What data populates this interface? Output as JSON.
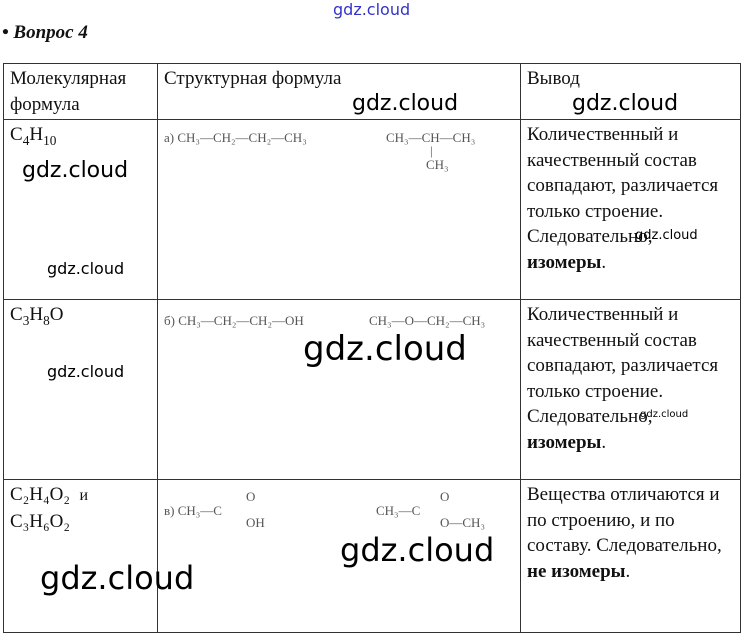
{
  "question": "• Вопрос 4",
  "headers": [
    "Молекулярная формула",
    "Структурная формула",
    "Вывод"
  ],
  "rows": [
    {
      "mol": [
        [
          "C",
          "4"
        ],
        [
          "H",
          "10"
        ]
      ],
      "label": "а)",
      "f1": "CH₃—CH₂—CH₂—CH₃",
      "f2a": "CH₃—CH—CH₃",
      "f2b": "CH₃",
      "conclusion": "Количественный и качественный состав совпадают, различается только строение. Следовательно,",
      "bold": "изомеры",
      "tail": "."
    },
    {
      "mol": [
        [
          "C",
          "3"
        ],
        [
          "H",
          "8"
        ],
        [
          "O",
          ""
        ]
      ],
      "label": "б)",
      "f1": "CH₃—CH₂—CH₂—OH",
      "f2a": "CH₃—O—CH₂—CH₃",
      "conclusion": "Количественный и качественный состав совпадают, различается только строение. Следовательно,",
      "bold": "изомеры",
      "tail": "."
    },
    {
      "mol1": "C₂H₄O₂",
      "and": "и",
      "mol2": "C₃H₆O₂",
      "label": "в)",
      "f1a": "CH₃—C",
      "f1o": "O",
      "f1oh": "OH",
      "f2a": "CH₃—C",
      "f2o": "O",
      "f2oc": "O—CH₃",
      "conclusion": "Вещества отличаются и по строению, и по составу. Следовательно,",
      "bold": "не изомеры",
      "tail": "."
    }
  ],
  "watermark": "gdz.cloud"
}
